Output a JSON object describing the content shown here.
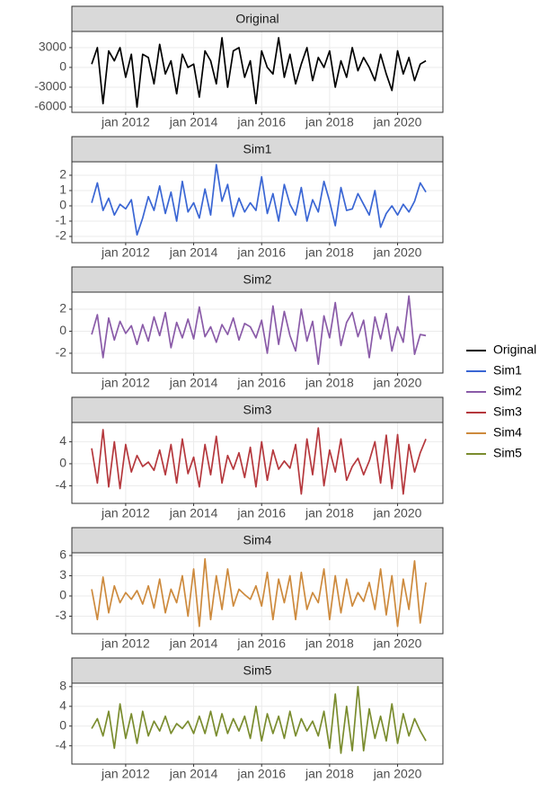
{
  "chart_data": [
    {
      "type": "line",
      "title": "Original",
      "x": [
        "2011-01",
        "2011-03",
        "2011-05",
        "2011-07",
        "2011-09",
        "2011-11",
        "2012-01",
        "2012-03",
        "2012-05",
        "2012-07",
        "2012-09",
        "2012-11",
        "2013-01",
        "2013-03",
        "2013-05",
        "2013-07",
        "2013-09",
        "2013-11",
        "2014-01",
        "2014-03",
        "2014-05",
        "2014-07",
        "2014-09",
        "2014-11",
        "2015-01",
        "2015-03",
        "2015-05",
        "2015-07",
        "2015-09",
        "2015-11",
        "2016-01",
        "2016-03",
        "2016-05",
        "2016-07",
        "2016-09",
        "2016-11",
        "2017-01",
        "2017-03",
        "2017-05",
        "2017-07",
        "2017-09",
        "2017-11",
        "2018-01",
        "2018-03",
        "2018-05",
        "2018-07",
        "2018-09",
        "2018-11",
        "2019-01",
        "2019-03",
        "2019-05",
        "2019-07",
        "2019-09",
        "2019-11",
        "2020-01",
        "2020-03",
        "2020-05",
        "2020-07",
        "2020-09",
        "2020-11"
      ],
      "series": [
        {
          "name": "Original",
          "color": "#000000",
          "values": [
            500,
            3000,
            -5500,
            2500,
            1000,
            3000,
            -1500,
            2000,
            -6000,
            2000,
            1500,
            -2500,
            3500,
            -1000,
            1000,
            -4000,
            2000,
            0,
            500,
            -4500,
            2500,
            1000,
            -2500,
            4500,
            -3000,
            2500,
            3000,
            -1500,
            1000,
            -5500,
            2500,
            0,
            -1000,
            4500,
            -1500,
            2000,
            -2500,
            500,
            3000,
            -2000,
            1500,
            0,
            2500,
            -3000,
            1000,
            -1500,
            3000,
            -500,
            1500,
            0,
            -2000,
            2000,
            -1000,
            -3500,
            2500,
            -1000,
            1500,
            -2000,
            500,
            1000
          ]
        }
      ],
      "xlim": [
        "2010-06",
        "2021-05"
      ],
      "xticks": [
        {
          "value": "2012-01",
          "label": "jan 2012"
        },
        {
          "value": "2014-01",
          "label": "jan 2014"
        },
        {
          "value": "2016-01",
          "label": "jan 2016"
        },
        {
          "value": "2018-01",
          "label": "jan 2018"
        },
        {
          "value": "2020-01",
          "label": "jan 2020"
        }
      ],
      "ylim": [
        -6820,
        5450
      ],
      "yticks": [
        -6000,
        -3000,
        0,
        3000
      ],
      "grid": true,
      "legend": "right"
    },
    {
      "type": "line",
      "title": "Sim1",
      "x": [
        "2011-01",
        "2011-03",
        "2011-05",
        "2011-07",
        "2011-09",
        "2011-11",
        "2012-01",
        "2012-03",
        "2012-05",
        "2012-07",
        "2012-09",
        "2012-11",
        "2013-01",
        "2013-03",
        "2013-05",
        "2013-07",
        "2013-09",
        "2013-11",
        "2014-01",
        "2014-03",
        "2014-05",
        "2014-07",
        "2014-09",
        "2014-11",
        "2015-01",
        "2015-03",
        "2015-05",
        "2015-07",
        "2015-09",
        "2015-11",
        "2016-01",
        "2016-03",
        "2016-05",
        "2016-07",
        "2016-09",
        "2016-11",
        "2017-01",
        "2017-03",
        "2017-05",
        "2017-07",
        "2017-09",
        "2017-11",
        "2018-01",
        "2018-03",
        "2018-05",
        "2018-07",
        "2018-09",
        "2018-11",
        "2019-01",
        "2019-03",
        "2019-05",
        "2019-07",
        "2019-09",
        "2019-11",
        "2020-01",
        "2020-03",
        "2020-05",
        "2020-07",
        "2020-09",
        "2020-11"
      ],
      "series": [
        {
          "name": "Sim1",
          "color": "#3a66d4",
          "values": [
            0.2,
            1.5,
            -0.3,
            0.5,
            -0.6,
            0.1,
            -0.2,
            0.4,
            -1.9,
            -0.8,
            0.6,
            -0.3,
            1.3,
            -0.5,
            0.9,
            -1.0,
            1.6,
            -0.4,
            0.2,
            -0.8,
            1.1,
            -0.6,
            2.7,
            0.3,
            1.4,
            -0.7,
            0.5,
            -0.4,
            0.2,
            -0.3,
            1.9,
            -0.5,
            0.8,
            -1.0,
            1.4,
            0.1,
            -0.6,
            1.2,
            -1.0,
            0.4,
            -0.4,
            1.6,
            0.3,
            -1.3,
            1.2,
            -0.3,
            -0.2,
            0.8,
            0.1,
            -0.6,
            1.0,
            -1.4,
            -0.5,
            0.0,
            -0.6,
            0.1,
            -0.4,
            0.3,
            1.5,
            0.9
          ]
        }
      ],
      "xlim": [
        "2010-06",
        "2021-05"
      ],
      "xticks": [
        {
          "value": "2012-01",
          "label": "jan 2012"
        },
        {
          "value": "2014-01",
          "label": "jan 2014"
        },
        {
          "value": "2016-01",
          "label": "jan 2016"
        },
        {
          "value": "2018-01",
          "label": "jan 2018"
        },
        {
          "value": "2020-01",
          "label": "jan 2020"
        }
      ],
      "ylim": [
        -2.41,
        2.88
      ],
      "yticks": [
        -2,
        -1,
        0,
        1,
        2
      ],
      "grid": true,
      "legend": "right"
    },
    {
      "type": "line",
      "title": "Sim2",
      "x": [
        "2011-01",
        "2011-03",
        "2011-05",
        "2011-07",
        "2011-09",
        "2011-11",
        "2012-01",
        "2012-03",
        "2012-05",
        "2012-07",
        "2012-09",
        "2012-11",
        "2013-01",
        "2013-03",
        "2013-05",
        "2013-07",
        "2013-09",
        "2013-11",
        "2014-01",
        "2014-03",
        "2014-05",
        "2014-07",
        "2014-09",
        "2014-11",
        "2015-01",
        "2015-03",
        "2015-05",
        "2015-07",
        "2015-09",
        "2015-11",
        "2016-01",
        "2016-03",
        "2016-05",
        "2016-07",
        "2016-09",
        "2016-11",
        "2017-01",
        "2017-03",
        "2017-05",
        "2017-07",
        "2017-09",
        "2017-11",
        "2018-01",
        "2018-03",
        "2018-05",
        "2018-07",
        "2018-09",
        "2018-11",
        "2019-01",
        "2019-03",
        "2019-05",
        "2019-07",
        "2019-09",
        "2019-11",
        "2020-01",
        "2020-03",
        "2020-05",
        "2020-07",
        "2020-09",
        "2020-11"
      ],
      "series": [
        {
          "name": "Sim2",
          "color": "#8a5ba8",
          "values": [
            -0.3,
            1.5,
            -2.4,
            1.2,
            -0.8,
            0.9,
            -0.2,
            0.5,
            -1.2,
            0.6,
            -0.9,
            1.3,
            -0.4,
            1.7,
            -1.5,
            0.8,
            -0.6,
            1.1,
            -0.7,
            2.2,
            -0.5,
            0.4,
            -1.0,
            0.6,
            -0.3,
            1.2,
            -0.8,
            0.7,
            0.4,
            -0.6,
            1.0,
            -2.0,
            2.3,
            -1.2,
            1.8,
            -0.4,
            -1.8,
            2.0,
            -0.9,
            0.9,
            -3.0,
            1.4,
            -0.6,
            2.6,
            -1.3,
            0.8,
            1.7,
            -0.5,
            1.0,
            -2.4,
            1.3,
            -0.7,
            1.6,
            -1.8,
            0.4,
            -1.0,
            3.2,
            -2.1,
            -0.3,
            -0.4
          ]
        }
      ],
      "xlim": [
        "2010-06",
        "2021-05"
      ],
      "xticks": [
        {
          "value": "2012-01",
          "label": "jan 2012"
        },
        {
          "value": "2014-01",
          "label": "jan 2014"
        },
        {
          "value": "2016-01",
          "label": "jan 2016"
        },
        {
          "value": "2018-01",
          "label": "jan 2018"
        },
        {
          "value": "2020-01",
          "label": "jan 2020"
        }
      ],
      "ylim": [
        -3.8,
        3.55
      ],
      "yticks": [
        -2,
        0,
        2
      ],
      "grid": true,
      "legend": "right"
    },
    {
      "type": "line",
      "title": "Sim3",
      "x": [
        "2011-01",
        "2011-03",
        "2011-05",
        "2011-07",
        "2011-09",
        "2011-11",
        "2012-01",
        "2012-03",
        "2012-05",
        "2012-07",
        "2012-09",
        "2012-11",
        "2013-01",
        "2013-03",
        "2013-05",
        "2013-07",
        "2013-09",
        "2013-11",
        "2014-01",
        "2014-03",
        "2014-05",
        "2014-07",
        "2014-09",
        "2014-11",
        "2015-01",
        "2015-03",
        "2015-05",
        "2015-07",
        "2015-09",
        "2015-11",
        "2016-01",
        "2016-03",
        "2016-05",
        "2016-07",
        "2016-09",
        "2016-11",
        "2017-01",
        "2017-03",
        "2017-05",
        "2017-07",
        "2017-09",
        "2017-11",
        "2018-01",
        "2018-03",
        "2018-05",
        "2018-07",
        "2018-09",
        "2018-11",
        "2019-01",
        "2019-03",
        "2019-05",
        "2019-07",
        "2019-09",
        "2019-11",
        "2020-01",
        "2020-03",
        "2020-05",
        "2020-07",
        "2020-09",
        "2020-11"
      ],
      "series": [
        {
          "name": "Sim3",
          "color": "#b5383d",
          "values": [
            2.8,
            -3.5,
            6.2,
            -4.2,
            4.0,
            -4.5,
            3.5,
            -1.5,
            1.5,
            -0.5,
            0.3,
            -1.2,
            2.5,
            -2.0,
            3.5,
            -3.5,
            4.5,
            -1.8,
            1.2,
            -4.2,
            3.5,
            -2.0,
            5.0,
            -3.5,
            1.5,
            -1.0,
            2.0,
            -2.5,
            3.0,
            -4.2,
            4.0,
            -3.0,
            2.5,
            -1.0,
            0.5,
            -0.8,
            3.5,
            -5.5,
            4.5,
            -2.0,
            6.5,
            -4.0,
            2.5,
            -1.5,
            4.5,
            -3.0,
            -0.5,
            1.0,
            -2.0,
            0.5,
            4.0,
            -3.5,
            5.2,
            -4.5,
            5.3,
            -5.5,
            3.5,
            -1.5,
            2.0,
            4.5
          ]
        }
      ],
      "xlim": [
        "2010-06",
        "2021-05"
      ],
      "xticks": [
        {
          "value": "2012-01",
          "label": "jan 2012"
        },
        {
          "value": "2014-01",
          "label": "jan 2014"
        },
        {
          "value": "2016-01",
          "label": "jan 2016"
        },
        {
          "value": "2018-01",
          "label": "jan 2018"
        },
        {
          "value": "2020-01",
          "label": "jan 2020"
        }
      ],
      "ylim": [
        -7.2,
        7.5
      ],
      "yticks": [
        -4,
        0,
        4
      ],
      "grid": true,
      "legend": "right"
    },
    {
      "type": "line",
      "title": "Sim4",
      "x": [
        "2011-01",
        "2011-03",
        "2011-05",
        "2011-07",
        "2011-09",
        "2011-11",
        "2012-01",
        "2012-03",
        "2012-05",
        "2012-07",
        "2012-09",
        "2012-11",
        "2013-01",
        "2013-03",
        "2013-05",
        "2013-07",
        "2013-09",
        "2013-11",
        "2014-01",
        "2014-03",
        "2014-05",
        "2014-07",
        "2014-09",
        "2014-11",
        "2015-01",
        "2015-03",
        "2015-05",
        "2015-07",
        "2015-09",
        "2015-11",
        "2016-01",
        "2016-03",
        "2016-05",
        "2016-07",
        "2016-09",
        "2016-11",
        "2017-01",
        "2017-03",
        "2017-05",
        "2017-07",
        "2017-09",
        "2017-11",
        "2018-01",
        "2018-03",
        "2018-05",
        "2018-07",
        "2018-09",
        "2018-11",
        "2019-01",
        "2019-03",
        "2019-05",
        "2019-07",
        "2019-09",
        "2019-11",
        "2020-01",
        "2020-03",
        "2020-05",
        "2020-07",
        "2020-09",
        "2020-11"
      ],
      "series": [
        {
          "name": "Sim4",
          "color": "#cd8a3d",
          "values": [
            1.0,
            -3.5,
            2.8,
            -2.5,
            1.5,
            -1.0,
            0.5,
            -0.5,
            0.8,
            -1.2,
            1.5,
            -1.8,
            2.5,
            -2.5,
            1.0,
            -1.0,
            3.0,
            -3.0,
            4.0,
            -4.5,
            5.5,
            -3.5,
            3.0,
            -2.0,
            4.0,
            -1.5,
            1.0,
            0.2,
            -0.5,
            1.5,
            -1.5,
            3.5,
            -3.5,
            2.5,
            -1.0,
            3.0,
            -3.5,
            3.5,
            -2.0,
            0.5,
            -1.0,
            4.0,
            -3.5,
            3.0,
            -2.5,
            2.5,
            -1.5,
            0.5,
            -0.8,
            2.0,
            -2.0,
            4.0,
            -2.8,
            3.0,
            -4.5,
            2.5,
            -2.0,
            5.2,
            -4.0,
            2.0
          ]
        }
      ],
      "xlim": [
        "2010-06",
        "2021-05"
      ],
      "xticks": [
        {
          "value": "2012-01",
          "label": "jan 2012"
        },
        {
          "value": "2014-01",
          "label": "jan 2014"
        },
        {
          "value": "2016-01",
          "label": "jan 2016"
        },
        {
          "value": "2018-01",
          "label": "jan 2018"
        },
        {
          "value": "2020-01",
          "label": "jan 2020"
        }
      ],
      "ylim": [
        -5.6,
        6.4
      ],
      "yticks": [
        -3,
        0,
        3,
        6
      ],
      "grid": true,
      "legend": "right"
    },
    {
      "type": "line",
      "title": "Sim5",
      "x": [
        "2011-01",
        "2011-03",
        "2011-05",
        "2011-07",
        "2011-09",
        "2011-11",
        "2012-01",
        "2012-03",
        "2012-05",
        "2012-07",
        "2012-09",
        "2012-11",
        "2013-01",
        "2013-03",
        "2013-05",
        "2013-07",
        "2013-09",
        "2013-11",
        "2014-01",
        "2014-03",
        "2014-05",
        "2014-07",
        "2014-09",
        "2014-11",
        "2015-01",
        "2015-03",
        "2015-05",
        "2015-07",
        "2015-09",
        "2015-11",
        "2016-01",
        "2016-03",
        "2016-05",
        "2016-07",
        "2016-09",
        "2016-11",
        "2017-01",
        "2017-03",
        "2017-05",
        "2017-07",
        "2017-09",
        "2017-11",
        "2018-01",
        "2018-03",
        "2018-05",
        "2018-07",
        "2018-09",
        "2018-11",
        "2019-01",
        "2019-03",
        "2019-05",
        "2019-07",
        "2019-09",
        "2019-11",
        "2020-01",
        "2020-03",
        "2020-05",
        "2020-07",
        "2020-09",
        "2020-11"
      ],
      "series": [
        {
          "name": "Sim5",
          "color": "#7a8c2e",
          "values": [
            -0.5,
            1.5,
            -2.0,
            3.0,
            -4.5,
            4.5,
            -2.5,
            2.5,
            -3.5,
            3.0,
            -2.0,
            1.0,
            -1.0,
            2.0,
            -1.5,
            0.5,
            -0.5,
            1.0,
            -1.5,
            2.0,
            -1.5,
            3.0,
            -2.0,
            2.5,
            -1.5,
            1.5,
            -1.0,
            2.0,
            -2.5,
            4.0,
            -3.0,
            2.5,
            -1.5,
            2.0,
            -2.5,
            3.0,
            -2.0,
            1.5,
            -1.0,
            1.0,
            -2.0,
            3.0,
            -4.5,
            6.5,
            -5.5,
            4.0,
            -5.0,
            8.0,
            -5.0,
            3.5,
            -2.5,
            2.0,
            -3.0,
            4.5,
            -3.5,
            2.5,
            -2.0,
            1.5,
            -1.0,
            -3.0
          ]
        }
      ],
      "xlim": [
        "2010-06",
        "2021-05"
      ],
      "xticks": [
        {
          "value": "2012-01",
          "label": "jan 2012"
        },
        {
          "value": "2014-01",
          "label": "jan 2014"
        },
        {
          "value": "2016-01",
          "label": "jan 2016"
        },
        {
          "value": "2018-01",
          "label": "jan 2018"
        },
        {
          "value": "2020-01",
          "label": "jan 2020"
        }
      ],
      "ylim": [
        -7.7,
        8.7
      ],
      "yticks": [
        -4,
        0,
        4,
        8
      ],
      "grid": true,
      "legend": "right"
    }
  ]
}
